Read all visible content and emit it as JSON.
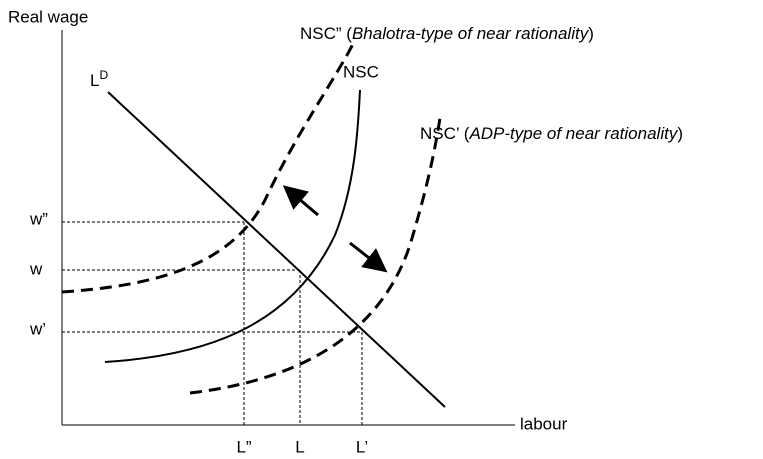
{
  "axes": {
    "y_label": "Real wage",
    "x_label": "labour"
  },
  "curves": {
    "labour_demand": {
      "label": "L",
      "superscript": "D"
    },
    "nsc": {
      "label": "NSC"
    },
    "nsc_bhalotra": {
      "prefix": "NSC” (",
      "italic": "Bhalotra-type of near rationality",
      "suffix": ")"
    },
    "nsc_adp": {
      "prefix": "NSC’ (",
      "italic": "ADP-type of near rationality",
      "suffix": ")"
    }
  },
  "y_ticks": [
    "w”",
    "w",
    "w’"
  ],
  "x_ticks": [
    "L”",
    "L",
    "L’"
  ]
}
